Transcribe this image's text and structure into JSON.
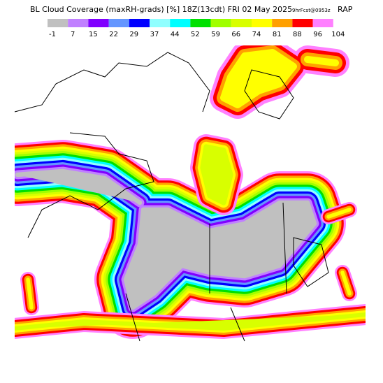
{
  "header": {
    "title": "BL Cloud Coverage (maxRH-grads) [%] 18Z(13cdt) FRI 02 May 2025",
    "forecast": "9hrFcst@0953z",
    "model": "RAP"
  },
  "colorbar": {
    "colors": [
      "#c0c0c0",
      "#c080ff",
      "#8000ff",
      "#6496ff",
      "#0000ff",
      "#90ffff",
      "#00ffff",
      "#00e000",
      "#a0ff00",
      "#d8ff00",
      "#ffff00",
      "#ffa000",
      "#ff0000",
      "#ff80ff"
    ],
    "labels": [
      -1,
      7,
      15,
      22,
      29,
      37,
      44,
      52,
      59,
      66,
      74,
      81,
      88,
      96,
      104
    ]
  }
}
